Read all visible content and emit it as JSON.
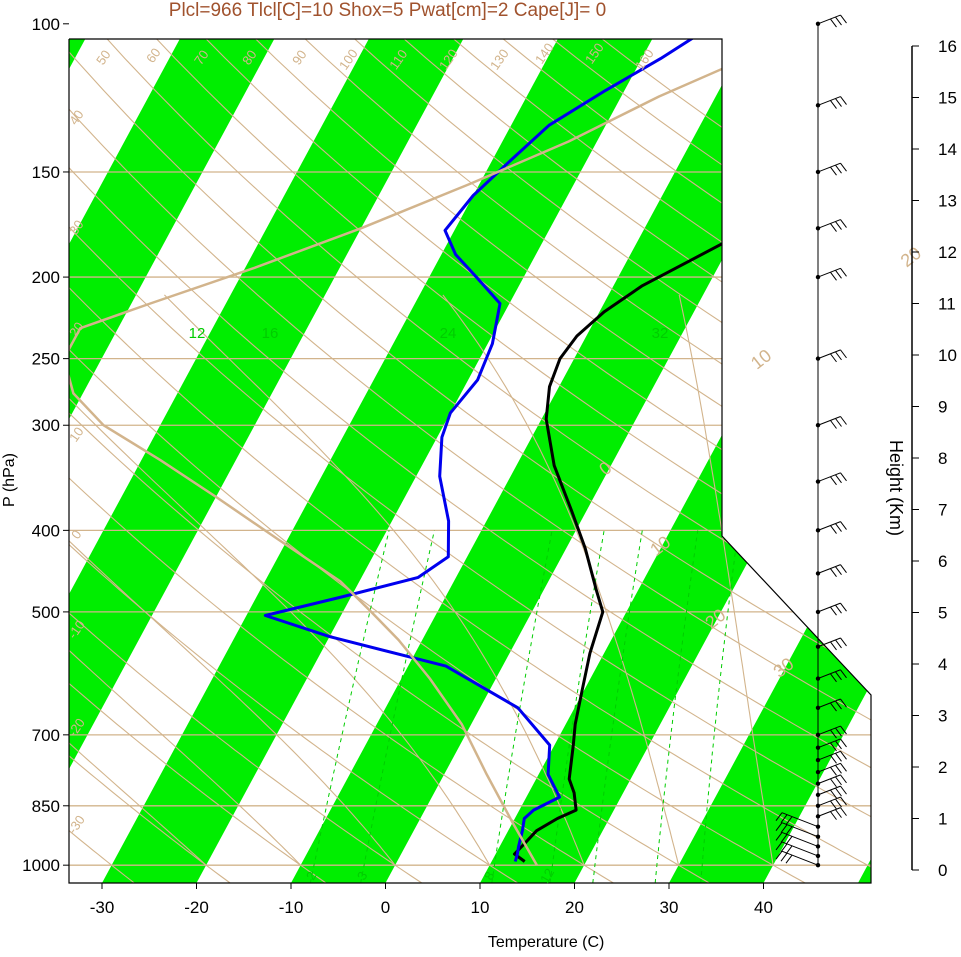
{
  "title": "Plcl=966 Tlcl[C]=10 Shox=5 Pwat[cm]=2 Cape[J]= 0",
  "colors": {
    "title": "#a0522d",
    "band": "#00ee00",
    "guide": "#d2b48c",
    "mixing": "#00cc00",
    "temperature": "#000000",
    "dewpoint": "#0000ee",
    "parcel": "#d2b48c"
  },
  "chart_data": {
    "type": "line",
    "subtype": "skew-t log-p sounding",
    "xlabel": "Temperature (C)",
    "ylabel": "P (hPa)",
    "y2label": "Height (Km)",
    "xlim": [
      -34,
      53
    ],
    "ylim": [
      1050,
      100
    ],
    "x_ticks": [
      -30,
      -20,
      -10,
      0,
      10,
      20,
      30,
      40
    ],
    "y_ticks": [
      100,
      150,
      200,
      250,
      300,
      400,
      500,
      700,
      850,
      1000
    ],
    "height_ticks": [
      0,
      1,
      2,
      3,
      4,
      5,
      6,
      7,
      8,
      9,
      10,
      11,
      12,
      13,
      14,
      15,
      16
    ],
    "isotherm_labels": [
      {
        "text": "30",
        "t": 30,
        "p": 140
      },
      {
        "text": "20",
        "t": 20,
        "p": 195
      },
      {
        "text": "10",
        "t": 10,
        "p": 258
      },
      {
        "text": "0",
        "t": 0,
        "p": 345
      },
      {
        "text": "10",
        "t": 10,
        "p": 430
      },
      {
        "text": "20",
        "t": 20,
        "p": 525
      },
      {
        "text": "30",
        "t": 30,
        "p": 600
      }
    ],
    "adiabat_labels": [
      {
        "text": "50"
      },
      {
        "text": "60"
      },
      {
        "text": "70"
      },
      {
        "text": "80"
      },
      {
        "text": "90"
      },
      {
        "text": "100"
      },
      {
        "text": "110"
      },
      {
        "text": "120"
      },
      {
        "text": "130"
      },
      {
        "text": "140"
      },
      {
        "text": "150"
      },
      {
        "text": "160"
      },
      {
        "text": "40"
      },
      {
        "text": "30"
      },
      {
        "text": "20"
      },
      {
        "text": "10"
      },
      {
        "text": "0"
      },
      {
        "text": "-10"
      },
      {
        "text": "-20"
      },
      {
        "text": "-30"
      }
    ],
    "mixing_labels_top": [
      "12",
      "16",
      "24",
      "32"
    ],
    "mixing_labels_bottom": [
      "2",
      "3",
      "8",
      "12"
    ],
    "series": [
      {
        "name": "temperature",
        "points": [
          [
            13.5,
            990
          ],
          [
            12,
            970
          ],
          [
            12.5,
            940
          ],
          [
            13,
            910
          ],
          [
            14.5,
            880
          ],
          [
            16,
            860
          ],
          [
            14.8,
            820
          ],
          [
            13.5,
            790
          ],
          [
            12,
            720
          ],
          [
            11,
            680
          ],
          [
            9.8,
            620
          ],
          [
            8.5,
            560
          ],
          [
            7.5,
            500
          ],
          [
            5.5,
            470
          ],
          [
            2,
            420
          ],
          [
            -1.5,
            380
          ],
          [
            -6,
            335
          ],
          [
            -9.5,
            295
          ],
          [
            -11,
            270
          ],
          [
            -11.5,
            250
          ],
          [
            -11,
            235
          ],
          [
            -9.5,
            220
          ],
          [
            -7,
            205
          ],
          [
            -3,
            190
          ],
          [
            1,
            176
          ],
          [
            3.5,
            160
          ],
          [
            6,
            140
          ],
          [
            7,
            128
          ],
          [
            8.5,
            118
          ],
          [
            10,
            108
          ],
          [
            10.5,
            101
          ]
        ]
      },
      {
        "name": "dewpoint",
        "points": [
          [
            12.5,
            990
          ],
          [
            12.3,
            970
          ],
          [
            12,
            950
          ],
          [
            11.5,
            910
          ],
          [
            11,
            880
          ],
          [
            11.5,
            860
          ],
          [
            13.5,
            830
          ],
          [
            11,
            780
          ],
          [
            9.5,
            720
          ],
          [
            4,
            650
          ],
          [
            -6,
            580
          ],
          [
            -20,
            535
          ],
          [
            -28,
            505
          ],
          [
            -21,
            480
          ],
          [
            -14,
            455
          ],
          [
            -12,
            430
          ],
          [
            -14,
            390
          ],
          [
            -17.5,
            345
          ],
          [
            -19.5,
            310
          ],
          [
            -20,
            290
          ],
          [
            -19,
            265
          ],
          [
            -19.5,
            240
          ],
          [
            -21,
            215
          ],
          [
            -25,
            200
          ],
          [
            -28.5,
            188
          ],
          [
            -31,
            176
          ],
          [
            -30,
            160
          ],
          [
            -28,
            145
          ],
          [
            -26,
            132
          ],
          [
            -22,
            120
          ],
          [
            -18,
            110
          ],
          [
            -15,
            102
          ]
        ]
      },
      {
        "name": "parcel",
        "points": [
          [
            15,
            1000
          ],
          [
            10,
            890
          ],
          [
            4.5,
            780
          ],
          [
            -1,
            680
          ],
          [
            -7,
            600
          ],
          [
            -12.5,
            540
          ],
          [
            -17,
            500
          ],
          [
            -22,
            460
          ],
          [
            -31,
            410
          ],
          [
            -40,
            365
          ],
          [
            -48,
            330
          ],
          [
            -56,
            300
          ],
          [
            -61,
            275
          ],
          [
            -64,
            250
          ],
          [
            -64,
            230
          ],
          [
            -58,
            215
          ],
          [
            -49,
            195
          ],
          [
            -40,
            175
          ],
          [
            -31,
            155
          ],
          [
            -23,
            138
          ],
          [
            -16,
            122
          ],
          [
            -9,
            110
          ],
          [
            -5,
            103
          ]
        ]
      }
    ],
    "wind_levels_hpa": [
      1000,
      975,
      950,
      925,
      900,
      875,
      850,
      825,
      800,
      775,
      750,
      725,
      700,
      650,
      600,
      550,
      500,
      450,
      400,
      350,
      300,
      250,
      200,
      175,
      150,
      125,
      100
    ]
  }
}
